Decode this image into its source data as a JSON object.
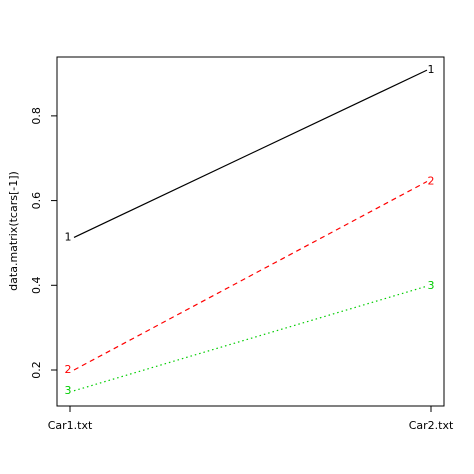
{
  "chart_data": {
    "type": "line",
    "y_label": "data.matrix(tcars[-1])",
    "categories": [
      "Car1.txt",
      "Car2.txt"
    ],
    "series": [
      {
        "name": "1",
        "color": "#000000",
        "dash": "solid",
        "values": [
          0.513,
          0.908
        ]
      },
      {
        "name": "2",
        "color": "#ff0000",
        "dash": "dashed",
        "values": [
          0.2,
          0.645
        ]
      },
      {
        "name": "3",
        "color": "#00cd00",
        "dash": "dotted",
        "values": [
          0.151,
          0.398
        ]
      }
    ],
    "ylim": [
      0.115,
      0.939
    ],
    "yticks": [
      0.2,
      0.4,
      0.6,
      0.8
    ]
  }
}
